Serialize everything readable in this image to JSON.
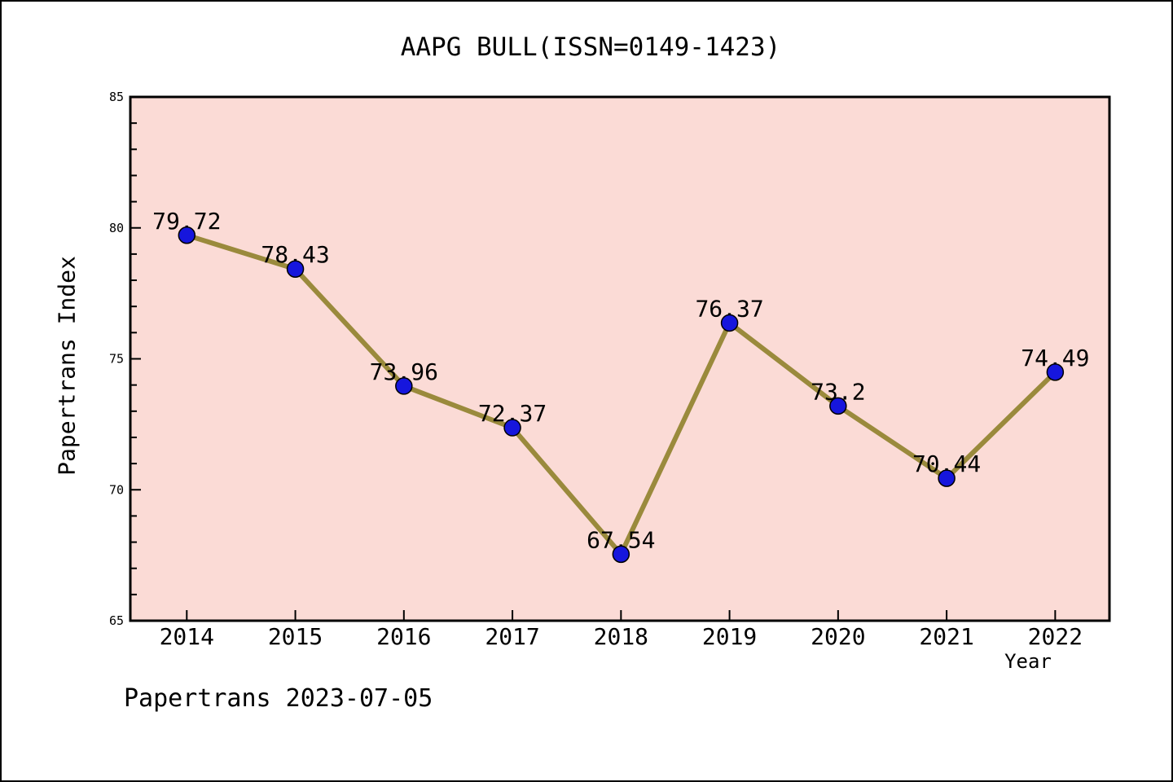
{
  "title": "AAPG BULL(ISSN=0149-1423)",
  "footer": "Papertrans 2023-07-05",
  "chart_data": {
    "type": "line",
    "title": "AAPG BULL(ISSN=0149-1423)",
    "xlabel": "Year",
    "ylabel": "Papertrans Index",
    "x": [
      2014,
      2015,
      2016,
      2017,
      2018,
      2019,
      2020,
      2021,
      2022
    ],
    "values": [
      79.72,
      78.43,
      73.96,
      72.37,
      67.54,
      76.37,
      73.2,
      70.44,
      74.49
    ],
    "point_labels": [
      "79.72",
      "78.43",
      "73.96",
      "72.37",
      "67.54",
      "76.37",
      "73.2",
      "70.44",
      "74.49"
    ],
    "x_tick_labels": [
      "2014",
      "2015",
      "2016",
      "2017",
      "2018",
      "2019",
      "2020",
      "2021",
      "2022"
    ],
    "y_major_ticks": [
      65,
      70,
      75,
      80,
      85
    ],
    "y_minor_step": 1,
    "ylim": [
      65,
      85
    ],
    "xlim": [
      2013.48,
      2022.5
    ],
    "grid": false,
    "legend": null,
    "colors": {
      "plot_bg": "#fbdbd6",
      "line": "#9a8a3c",
      "marker_fill": "#1616dd",
      "marker_edge": "#000000",
      "axis": "#000000",
      "text": "#000000"
    }
  }
}
